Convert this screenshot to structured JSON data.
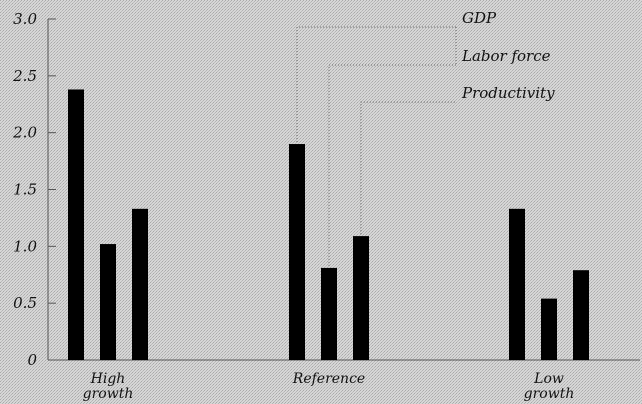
{
  "chart_data": {
    "type": "bar",
    "title": "",
    "xlabel": "",
    "ylabel": "",
    "ylim": [
      0,
      3.0
    ],
    "yticks": [
      "0",
      "0.5",
      "1.0",
      "1.5",
      "2.0",
      "2.5",
      "3.0"
    ],
    "categories": [
      {
        "line1": "High",
        "line2": "growth"
      },
      {
        "line1": "Reference",
        "line2": ""
      },
      {
        "line1": "Low",
        "line2": "growth"
      }
    ],
    "series": [
      {
        "name": "GDP",
        "values": [
          2.38,
          1.9,
          1.33
        ]
      },
      {
        "name": "Labor force",
        "values": [
          1.02,
          0.81,
          0.54
        ]
      },
      {
        "name": "Productivity",
        "values": [
          1.33,
          1.09,
          0.79
        ]
      }
    ],
    "legend": "annotated callouts, top-right",
    "grid": false,
    "colors": {
      "bars": "#000000",
      "background": "#cfcfcf",
      "axis": "#555555",
      "callout": "#666666"
    }
  }
}
